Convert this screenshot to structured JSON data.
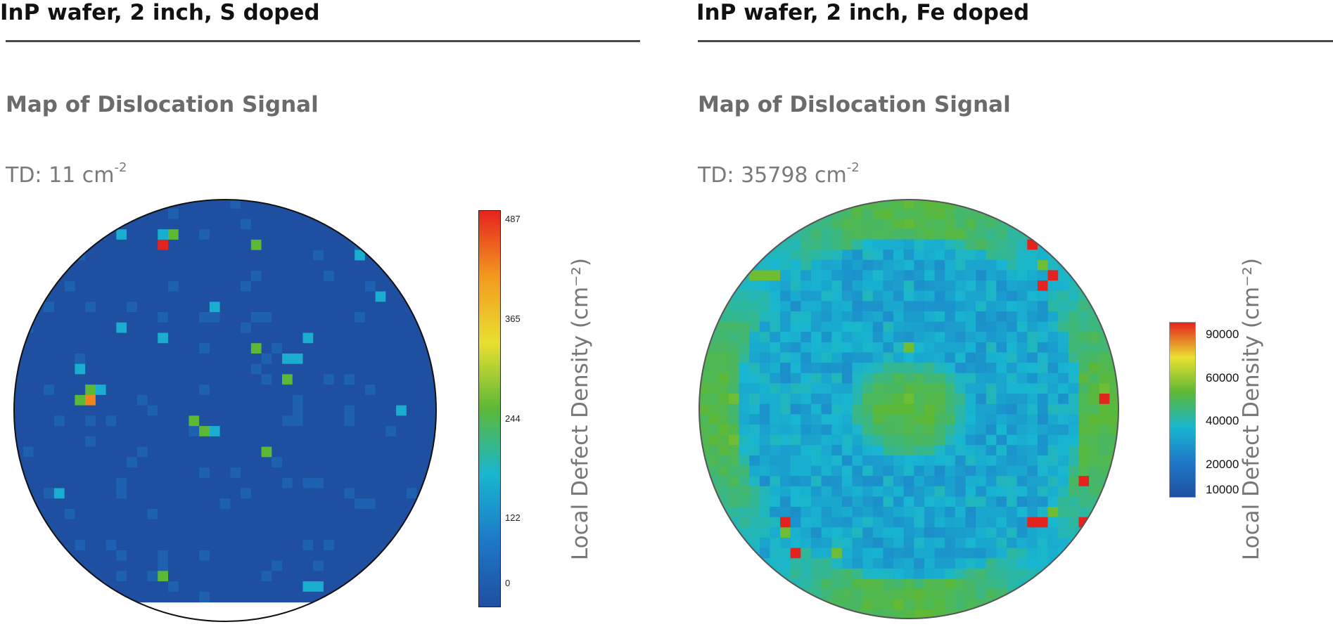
{
  "panels": [
    {
      "heading": "InP wafer, 2 inch, S doped",
      "subtitle": "Map of Dislocation Signal",
      "td_prefix": "TD: 11 cm",
      "td_exp": "-2",
      "colorbar_title": "Local Defect Density (cm⁻²)"
    },
    {
      "heading": "InP wafer, 2 inch, Fe doped",
      "subtitle": "Map of Dislocation Signal",
      "td_prefix": "TD: 35798 cm",
      "td_exp": "-2",
      "colorbar_title": "Local Defect Density (cm⁻²)"
    }
  ],
  "chart_data": [
    {
      "type": "heatmap",
      "title": "Map of Dislocation Signal",
      "shape": "circular wafer map",
      "grid": [
        41,
        41
      ],
      "colorbar": {
        "label": "Local Defect Density (cm⁻²)",
        "ticks": [
          "487",
          "365",
          "244",
          "122",
          "0"
        ],
        "range": [
          0,
          487
        ],
        "colormap": [
          "#1f4fa0",
          "#1e78c8",
          "#18b6d0",
          "#5cb836",
          "#e9e030",
          "#f39a1e",
          "#e5231e"
        ]
      },
      "background_value": 0,
      "hotspots": [
        {
          "row": 3,
          "col": 10,
          "value": 150
        },
        {
          "row": 3,
          "col": 14,
          "value": 150
        },
        {
          "row": 3,
          "col": 15,
          "value": 244
        },
        {
          "row": 4,
          "col": 14,
          "value": 487
        },
        {
          "row": 4,
          "col": 23,
          "value": 244
        },
        {
          "row": 5,
          "col": 33,
          "value": 150
        },
        {
          "row": 9,
          "col": 35,
          "value": 150
        },
        {
          "row": 10,
          "col": 19,
          "value": 150
        },
        {
          "row": 12,
          "col": 10,
          "value": 150
        },
        {
          "row": 13,
          "col": 14,
          "value": 150
        },
        {
          "row": 13,
          "col": 28,
          "value": 150
        },
        {
          "row": 14,
          "col": 23,
          "value": 244
        },
        {
          "row": 15,
          "col": 26,
          "value": 150
        },
        {
          "row": 15,
          "col": 27,
          "value": 150
        },
        {
          "row": 16,
          "col": 6,
          "value": 150
        },
        {
          "row": 17,
          "col": 26,
          "value": 244
        },
        {
          "row": 18,
          "col": 7,
          "value": 244
        },
        {
          "row": 18,
          "col": 8,
          "value": 150
        },
        {
          "row": 19,
          "col": 6,
          "value": 244
        },
        {
          "row": 19,
          "col": 7,
          "value": 420
        },
        {
          "row": 20,
          "col": 37,
          "value": 150
        },
        {
          "row": 21,
          "col": 17,
          "value": 244
        },
        {
          "row": 22,
          "col": 18,
          "value": 244
        },
        {
          "row": 22,
          "col": 19,
          "value": 150
        },
        {
          "row": 24,
          "col": 24,
          "value": 244
        },
        {
          "row": 28,
          "col": 4,
          "value": 150
        },
        {
          "row": 36,
          "col": 14,
          "value": 244
        },
        {
          "row": 37,
          "col": 28,
          "value": 150
        },
        {
          "row": 37,
          "col": 29,
          "value": 150
        }
      ]
    },
    {
      "type": "heatmap",
      "title": "Map of Dislocation Signal",
      "shape": "circular wafer map",
      "grid": [
        41,
        41
      ],
      "colorbar": {
        "label": "Local Defect Density (cm⁻²)",
        "ticks": [
          "90000",
          "60000",
          "40000",
          "20000",
          "10000"
        ],
        "range": [
          10000,
          90000
        ],
        "colormap": [
          "#1f4fa0",
          "#1e78c8",
          "#18b6d0",
          "#5cb836",
          "#e9e030",
          "#e5231e"
        ]
      },
      "mean_density": 35798,
      "pattern": "green ring at edge and green central core with red/yellow edge hotspots; blue band between",
      "hotspots": [
        {
          "row": 4,
          "col": 32,
          "value": 90000
        },
        {
          "row": 6,
          "col": 33,
          "value": 60000
        },
        {
          "row": 7,
          "col": 34,
          "value": 90000
        },
        {
          "row": 8,
          "col": 33,
          "value": 90000
        },
        {
          "row": 7,
          "col": 5,
          "value": 60000
        },
        {
          "row": 7,
          "col": 6,
          "value": 60000
        },
        {
          "row": 7,
          "col": 7,
          "value": 60000
        },
        {
          "row": 14,
          "col": 20,
          "value": 60000
        },
        {
          "row": 19,
          "col": 20,
          "value": 60000
        },
        {
          "row": 19,
          "col": 3,
          "value": 60000
        },
        {
          "row": 23,
          "col": 3,
          "value": 60000
        },
        {
          "row": 19,
          "col": 39,
          "value": 90000
        },
        {
          "row": 18,
          "col": 39,
          "value": 60000
        },
        {
          "row": 27,
          "col": 37,
          "value": 90000
        },
        {
          "row": 31,
          "col": 8,
          "value": 90000
        },
        {
          "row": 32,
          "col": 8,
          "value": 60000
        },
        {
          "row": 34,
          "col": 9,
          "value": 90000
        },
        {
          "row": 31,
          "col": 32,
          "value": 90000
        },
        {
          "row": 31,
          "col": 33,
          "value": 90000
        },
        {
          "row": 31,
          "col": 37,
          "value": 90000
        },
        {
          "row": 30,
          "col": 34,
          "value": 60000
        },
        {
          "row": 34,
          "col": 13,
          "value": 60000
        }
      ]
    }
  ]
}
